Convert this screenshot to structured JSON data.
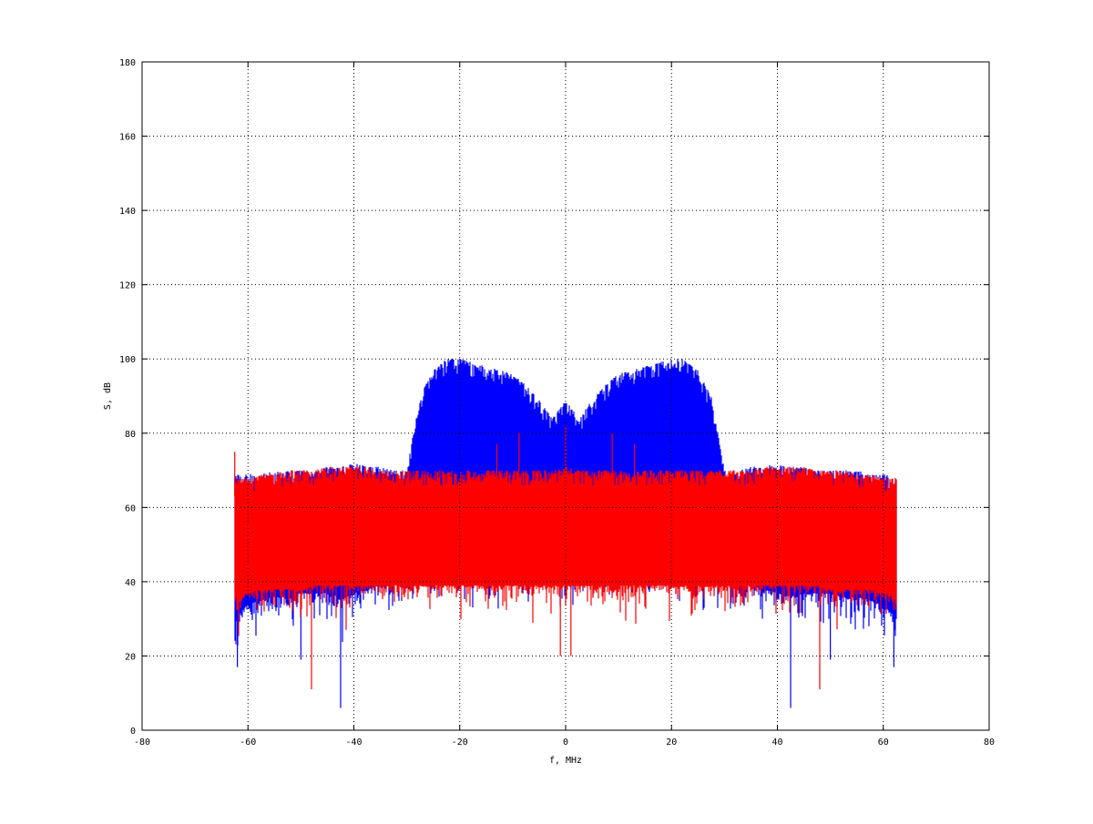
{
  "chart_data": {
    "type": "line",
    "title": "",
    "xlabel": "f, MHz",
    "ylabel": "S, dB",
    "xlim": [
      -80,
      80
    ],
    "ylim": [
      0,
      180
    ],
    "xticks": [
      -80,
      -60,
      -40,
      -20,
      0,
      20,
      40,
      60,
      80
    ],
    "yticks": [
      0,
      20,
      40,
      60,
      80,
      100,
      120,
      140,
      160,
      180
    ],
    "grid": true,
    "grid_style": "dotted",
    "legend": "none",
    "x": [
      -62.5,
      -60,
      -57.5,
      -55,
      -52.5,
      -50,
      -47.5,
      -45,
      -42.5,
      -40,
      -37.5,
      -35,
      -32.5,
      -30,
      -27.5,
      -25,
      -22.5,
      -20,
      -17.5,
      -15,
      -12.5,
      -10,
      -7.5,
      -5,
      -2.5,
      0,
      2.5,
      5,
      7.5,
      10,
      12.5,
      15,
      17.5,
      20,
      22.5,
      25,
      27.5,
      30,
      32.5,
      35,
      37.5,
      40,
      42.5,
      45,
      47.5,
      50,
      52.5,
      55,
      57.5,
      60,
      62.5
    ],
    "series": [
      {
        "color": "#0000ff",
        "upper_envelope": [
          69,
          69,
          69,
          70,
          70,
          70,
          70,
          71,
          71,
          72,
          71,
          71,
          70,
          70,
          90,
          97,
          100,
          100,
          99,
          98,
          97,
          96,
          93,
          89,
          84,
          89,
          84,
          89,
          93,
          96,
          97,
          98,
          99,
          100,
          100,
          97,
          90,
          70,
          70,
          71,
          71,
          72,
          71,
          71,
          70,
          70,
          70,
          70,
          69,
          69,
          69
        ],
        "lower_envelope": [
          30,
          34,
          35,
          36,
          36,
          37,
          37,
          37,
          36,
          37,
          38,
          39,
          40,
          41,
          42,
          42,
          43,
          43,
          43,
          43,
          43,
          43,
          43,
          43,
          43,
          43,
          43,
          43,
          43,
          43,
          43,
          43,
          43,
          43,
          43,
          42,
          42,
          41,
          40,
          39,
          38,
          37,
          36,
          37,
          37,
          37,
          36,
          36,
          35,
          34,
          30
        ],
        "spikes": [
          {
            "x": -42.5,
            "y": 6
          },
          {
            "x": 42.5,
            "y": 6
          },
          {
            "x": -62,
            "y": 17
          },
          {
            "x": 62,
            "y": 17
          },
          {
            "x": -50,
            "y": 19
          },
          {
            "x": 50,
            "y": 19
          }
        ]
      },
      {
        "color": "#ff0000",
        "upper_envelope": [
          68,
          68,
          69,
          69,
          70,
          70,
          70,
          71,
          71,
          71,
          71,
          70,
          70,
          70,
          70,
          70,
          70,
          70,
          70,
          70,
          70,
          70,
          70,
          70,
          70,
          71,
          70,
          70,
          70,
          70,
          70,
          70,
          70,
          70,
          70,
          70,
          70,
          70,
          70,
          70,
          71,
          71,
          71,
          71,
          70,
          70,
          70,
          69,
          69,
          68,
          68
        ],
        "lower_envelope": [
          36,
          37,
          38,
          38,
          38,
          38,
          39,
          39,
          39,
          39,
          39,
          39,
          39,
          39,
          39,
          39,
          39,
          39,
          39,
          39,
          39,
          39,
          39,
          39,
          39,
          39,
          39,
          39,
          39,
          39,
          39,
          39,
          39,
          39,
          39,
          39,
          39,
          39,
          39,
          39,
          39,
          39,
          39,
          39,
          39,
          38,
          38,
          38,
          38,
          37,
          36
        ],
        "spikes": [
          {
            "x": -62.5,
            "y": 75
          },
          {
            "x": -8.8,
            "y": 80
          },
          {
            "x": 0,
            "y": 82
          },
          {
            "x": 8.8,
            "y": 80
          },
          {
            "x": -13,
            "y": 77
          },
          {
            "x": 13,
            "y": 77
          },
          {
            "x": -48,
            "y": 11
          },
          {
            "x": 48,
            "y": 11
          },
          {
            "x": -1,
            "y": 20
          },
          {
            "x": 1,
            "y": 20
          }
        ]
      }
    ]
  }
}
